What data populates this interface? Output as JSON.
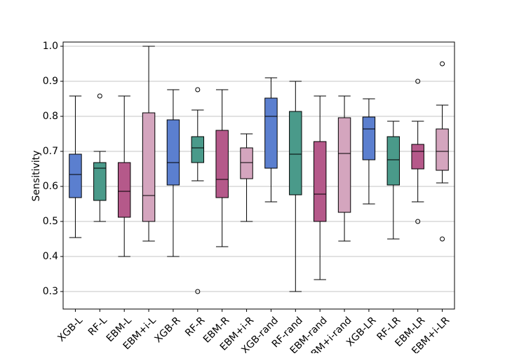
{
  "chart_data": {
    "type": "box",
    "y_label": "Sensitivity",
    "ylim": [
      0.25,
      1.012
    ],
    "yticks": [
      0.3,
      0.4,
      0.5,
      0.6,
      0.7,
      0.8,
      0.9,
      {
        "value": 1.0,
        "label": "1.0"
      }
    ],
    "grid": true,
    "categories": [
      "XGB-L",
      "RF-L",
      "EBM-L",
      "EBM+i-L",
      "XGB-R",
      "RF-R",
      "EBM-R",
      "EBM+i-R",
      "XGB-rand",
      "RF-rand",
      "EBM-rand",
      "EBM+i-rand",
      "XGB-LR",
      "RF-LR",
      "EBM-LR",
      "EBM+i-LR"
    ],
    "colors": [
      "#5b7fcf",
      "#4a9a8a",
      "#b5598a",
      "#d4a5be",
      "#5b7fcf",
      "#4a9a8a",
      "#b5598a",
      "#d4a5be",
      "#5b7fcf",
      "#4a9a8a",
      "#b5598a",
      "#d4a5be",
      "#5b7fcf",
      "#4a9a8a",
      "#b5598a",
      "#d4a5be"
    ],
    "boxes": [
      {
        "whislo": 0.454,
        "q1": 0.568,
        "med": 0.634,
        "q3": 0.692,
        "whishi": 0.858,
        "fliers": []
      },
      {
        "whislo": 0.5,
        "q1": 0.56,
        "med": 0.652,
        "q3": 0.668,
        "whishi": 0.7,
        "fliers": [
          0.858
        ]
      },
      {
        "whislo": 0.4,
        "q1": 0.512,
        "med": 0.586,
        "q3": 0.668,
        "whishi": 0.858,
        "fliers": []
      },
      {
        "whislo": 0.444,
        "q1": 0.5,
        "med": 0.574,
        "q3": 0.81,
        "whishi": 1.0,
        "fliers": []
      },
      {
        "whislo": 0.4,
        "q1": 0.604,
        "med": 0.668,
        "q3": 0.79,
        "whishi": 0.876,
        "fliers": []
      },
      {
        "whislo": 0.616,
        "q1": 0.668,
        "med": 0.71,
        "q3": 0.742,
        "whishi": 0.818,
        "fliers": [
          0.876,
          0.3
        ]
      },
      {
        "whislo": 0.428,
        "q1": 0.568,
        "med": 0.62,
        "q3": 0.76,
        "whishi": 0.876,
        "fliers": []
      },
      {
        "whislo": 0.5,
        "q1": 0.622,
        "med": 0.668,
        "q3": 0.71,
        "whishi": 0.75,
        "fliers": []
      },
      {
        "whislo": 0.556,
        "q1": 0.652,
        "med": 0.8,
        "q3": 0.852,
        "whishi": 0.91,
        "fliers": []
      },
      {
        "whislo": 0.3,
        "q1": 0.576,
        "med": 0.692,
        "q3": 0.814,
        "whishi": 0.9,
        "fliers": []
      },
      {
        "whislo": 0.334,
        "q1": 0.5,
        "med": 0.578,
        "q3": 0.728,
        "whishi": 0.858,
        "fliers": []
      },
      {
        "whislo": 0.444,
        "q1": 0.526,
        "med": 0.694,
        "q3": 0.796,
        "whishi": 0.858,
        "fliers": []
      },
      {
        "whislo": 0.55,
        "q1": 0.676,
        "med": 0.764,
        "q3": 0.798,
        "whishi": 0.85,
        "fliers": []
      },
      {
        "whislo": 0.45,
        "q1": 0.604,
        "med": 0.676,
        "q3": 0.742,
        "whishi": 0.786,
        "fliers": []
      },
      {
        "whislo": 0.556,
        "q1": 0.65,
        "med": 0.7,
        "q3": 0.72,
        "whishi": 0.786,
        "fliers": [
          0.9,
          0.5
        ]
      },
      {
        "whislo": 0.61,
        "q1": 0.646,
        "med": 0.7,
        "q3": 0.764,
        "whishi": 0.832,
        "fliers": [
          0.95,
          0.45
        ]
      }
    ]
  }
}
